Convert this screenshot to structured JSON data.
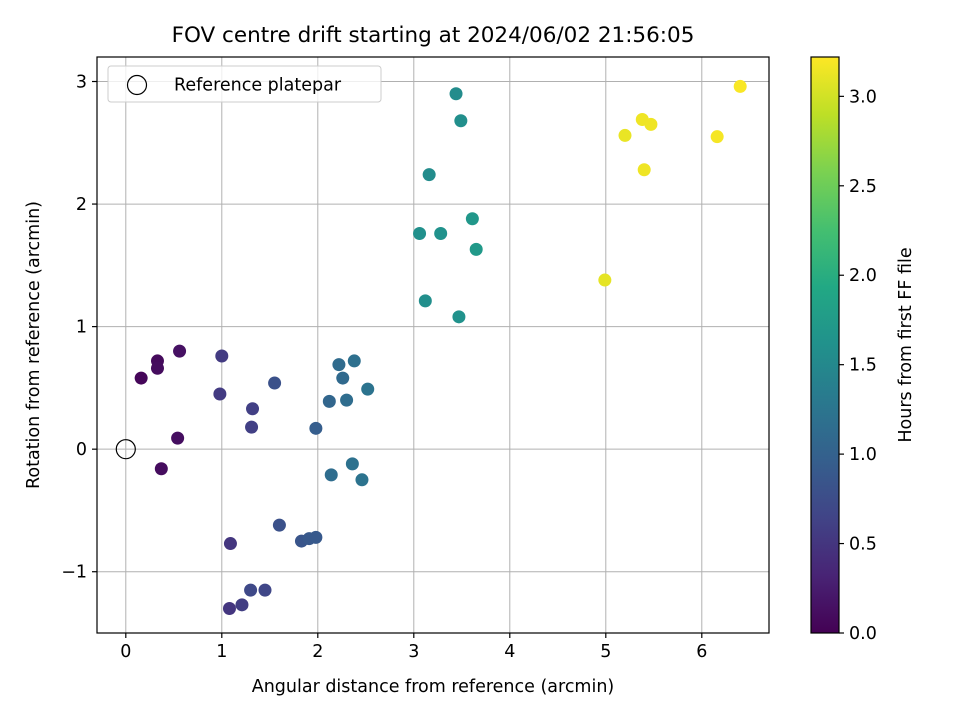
{
  "chart_data": {
    "type": "scatter",
    "title": "FOV centre drift starting at 2024/06/02 21:56:05",
    "xlabel": "Angular distance from reference (arcmin)",
    "ylabel": "Rotation from reference (arcmin)",
    "xlim": [
      -0.3,
      6.7
    ],
    "ylim": [
      -1.5,
      3.2
    ],
    "xticks": [
      0,
      1,
      2,
      3,
      4,
      5,
      6
    ],
    "yticks": [
      -1,
      0,
      1,
      2,
      3
    ],
    "xtick_labels": [
      "0",
      "1",
      "2",
      "3",
      "4",
      "5",
      "6"
    ],
    "ytick_labels": [
      "−1",
      "0",
      "1",
      "2",
      "3"
    ],
    "grid": true,
    "legend": {
      "placement": "top-left",
      "entries": [
        "Reference platepar"
      ]
    },
    "reference_point": {
      "x": 0,
      "y": 0,
      "label": "Reference platepar"
    },
    "colorbar": {
      "label": "Hours from first FF file",
      "colormap": "viridis",
      "range": [
        0,
        3.22
      ],
      "ticks": [
        0.0,
        0.5,
        1.0,
        1.5,
        2.0,
        2.5,
        3.0
      ],
      "tick_labels": [
        "0.0",
        "0.5",
        "1.0",
        "1.5",
        "2.0",
        "2.5",
        "3.0"
      ]
    },
    "points": [
      {
        "x": 0.16,
        "y": 0.58,
        "c": 0.05
      },
      {
        "x": 0.33,
        "y": 0.72,
        "c": 0.08
      },
      {
        "x": 0.33,
        "y": 0.66,
        "c": 0.1
      },
      {
        "x": 0.56,
        "y": 0.8,
        "c": 0.15
      },
      {
        "x": 0.54,
        "y": 0.09,
        "c": 0.12
      },
      {
        "x": 0.37,
        "y": -0.16,
        "c": 0.1
      },
      {
        "x": 1.0,
        "y": 0.76,
        "c": 0.55
      },
      {
        "x": 0.98,
        "y": 0.45,
        "c": 0.55
      },
      {
        "x": 1.32,
        "y": 0.33,
        "c": 0.6
      },
      {
        "x": 1.31,
        "y": 0.18,
        "c": 0.6
      },
      {
        "x": 1.55,
        "y": 0.54,
        "c": 0.8
      },
      {
        "x": 1.09,
        "y": -0.77,
        "c": 0.5
      },
      {
        "x": 1.08,
        "y": -1.3,
        "c": 0.5
      },
      {
        "x": 1.21,
        "y": -1.27,
        "c": 0.58
      },
      {
        "x": 1.3,
        "y": -1.15,
        "c": 0.7
      },
      {
        "x": 1.45,
        "y": -1.15,
        "c": 0.68
      },
      {
        "x": 1.6,
        "y": -0.62,
        "c": 0.8
      },
      {
        "x": 1.83,
        "y": -0.75,
        "c": 0.85
      },
      {
        "x": 1.91,
        "y": -0.73,
        "c": 0.88
      },
      {
        "x": 1.98,
        "y": -0.72,
        "c": 0.9
      },
      {
        "x": 1.98,
        "y": 0.17,
        "c": 0.95
      },
      {
        "x": 2.12,
        "y": 0.39,
        "c": 1.05
      },
      {
        "x": 2.22,
        "y": 0.69,
        "c": 1.12
      },
      {
        "x": 2.26,
        "y": 0.58,
        "c": 1.1
      },
      {
        "x": 2.3,
        "y": 0.4,
        "c": 1.15
      },
      {
        "x": 2.38,
        "y": 0.72,
        "c": 1.18
      },
      {
        "x": 2.52,
        "y": 0.49,
        "c": 1.22
      },
      {
        "x": 2.14,
        "y": -0.21,
        "c": 1.15
      },
      {
        "x": 2.36,
        "y": -0.12,
        "c": 1.2
      },
      {
        "x": 2.46,
        "y": -0.25,
        "c": 1.22
      },
      {
        "x": 3.44,
        "y": 2.9,
        "c": 1.55
      },
      {
        "x": 3.49,
        "y": 2.68,
        "c": 1.58
      },
      {
        "x": 3.16,
        "y": 2.24,
        "c": 1.55
      },
      {
        "x": 3.06,
        "y": 1.76,
        "c": 1.6
      },
      {
        "x": 3.28,
        "y": 1.76,
        "c": 1.62
      },
      {
        "x": 3.61,
        "y": 1.88,
        "c": 1.7
      },
      {
        "x": 3.65,
        "y": 1.63,
        "c": 1.72
      },
      {
        "x": 3.12,
        "y": 1.21,
        "c": 1.58
      },
      {
        "x": 3.47,
        "y": 1.08,
        "c": 1.62
      },
      {
        "x": 6.4,
        "y": 2.96,
        "c": 3.2
      },
      {
        "x": 5.38,
        "y": 2.69,
        "c": 3.15
      },
      {
        "x": 5.47,
        "y": 2.65,
        "c": 3.15
      },
      {
        "x": 5.2,
        "y": 2.56,
        "c": 3.12
      },
      {
        "x": 6.16,
        "y": 2.55,
        "c": 3.18
      },
      {
        "x": 5.4,
        "y": 2.28,
        "c": 3.15
      },
      {
        "x": 4.99,
        "y": 1.38,
        "c": 3.1
      }
    ]
  }
}
